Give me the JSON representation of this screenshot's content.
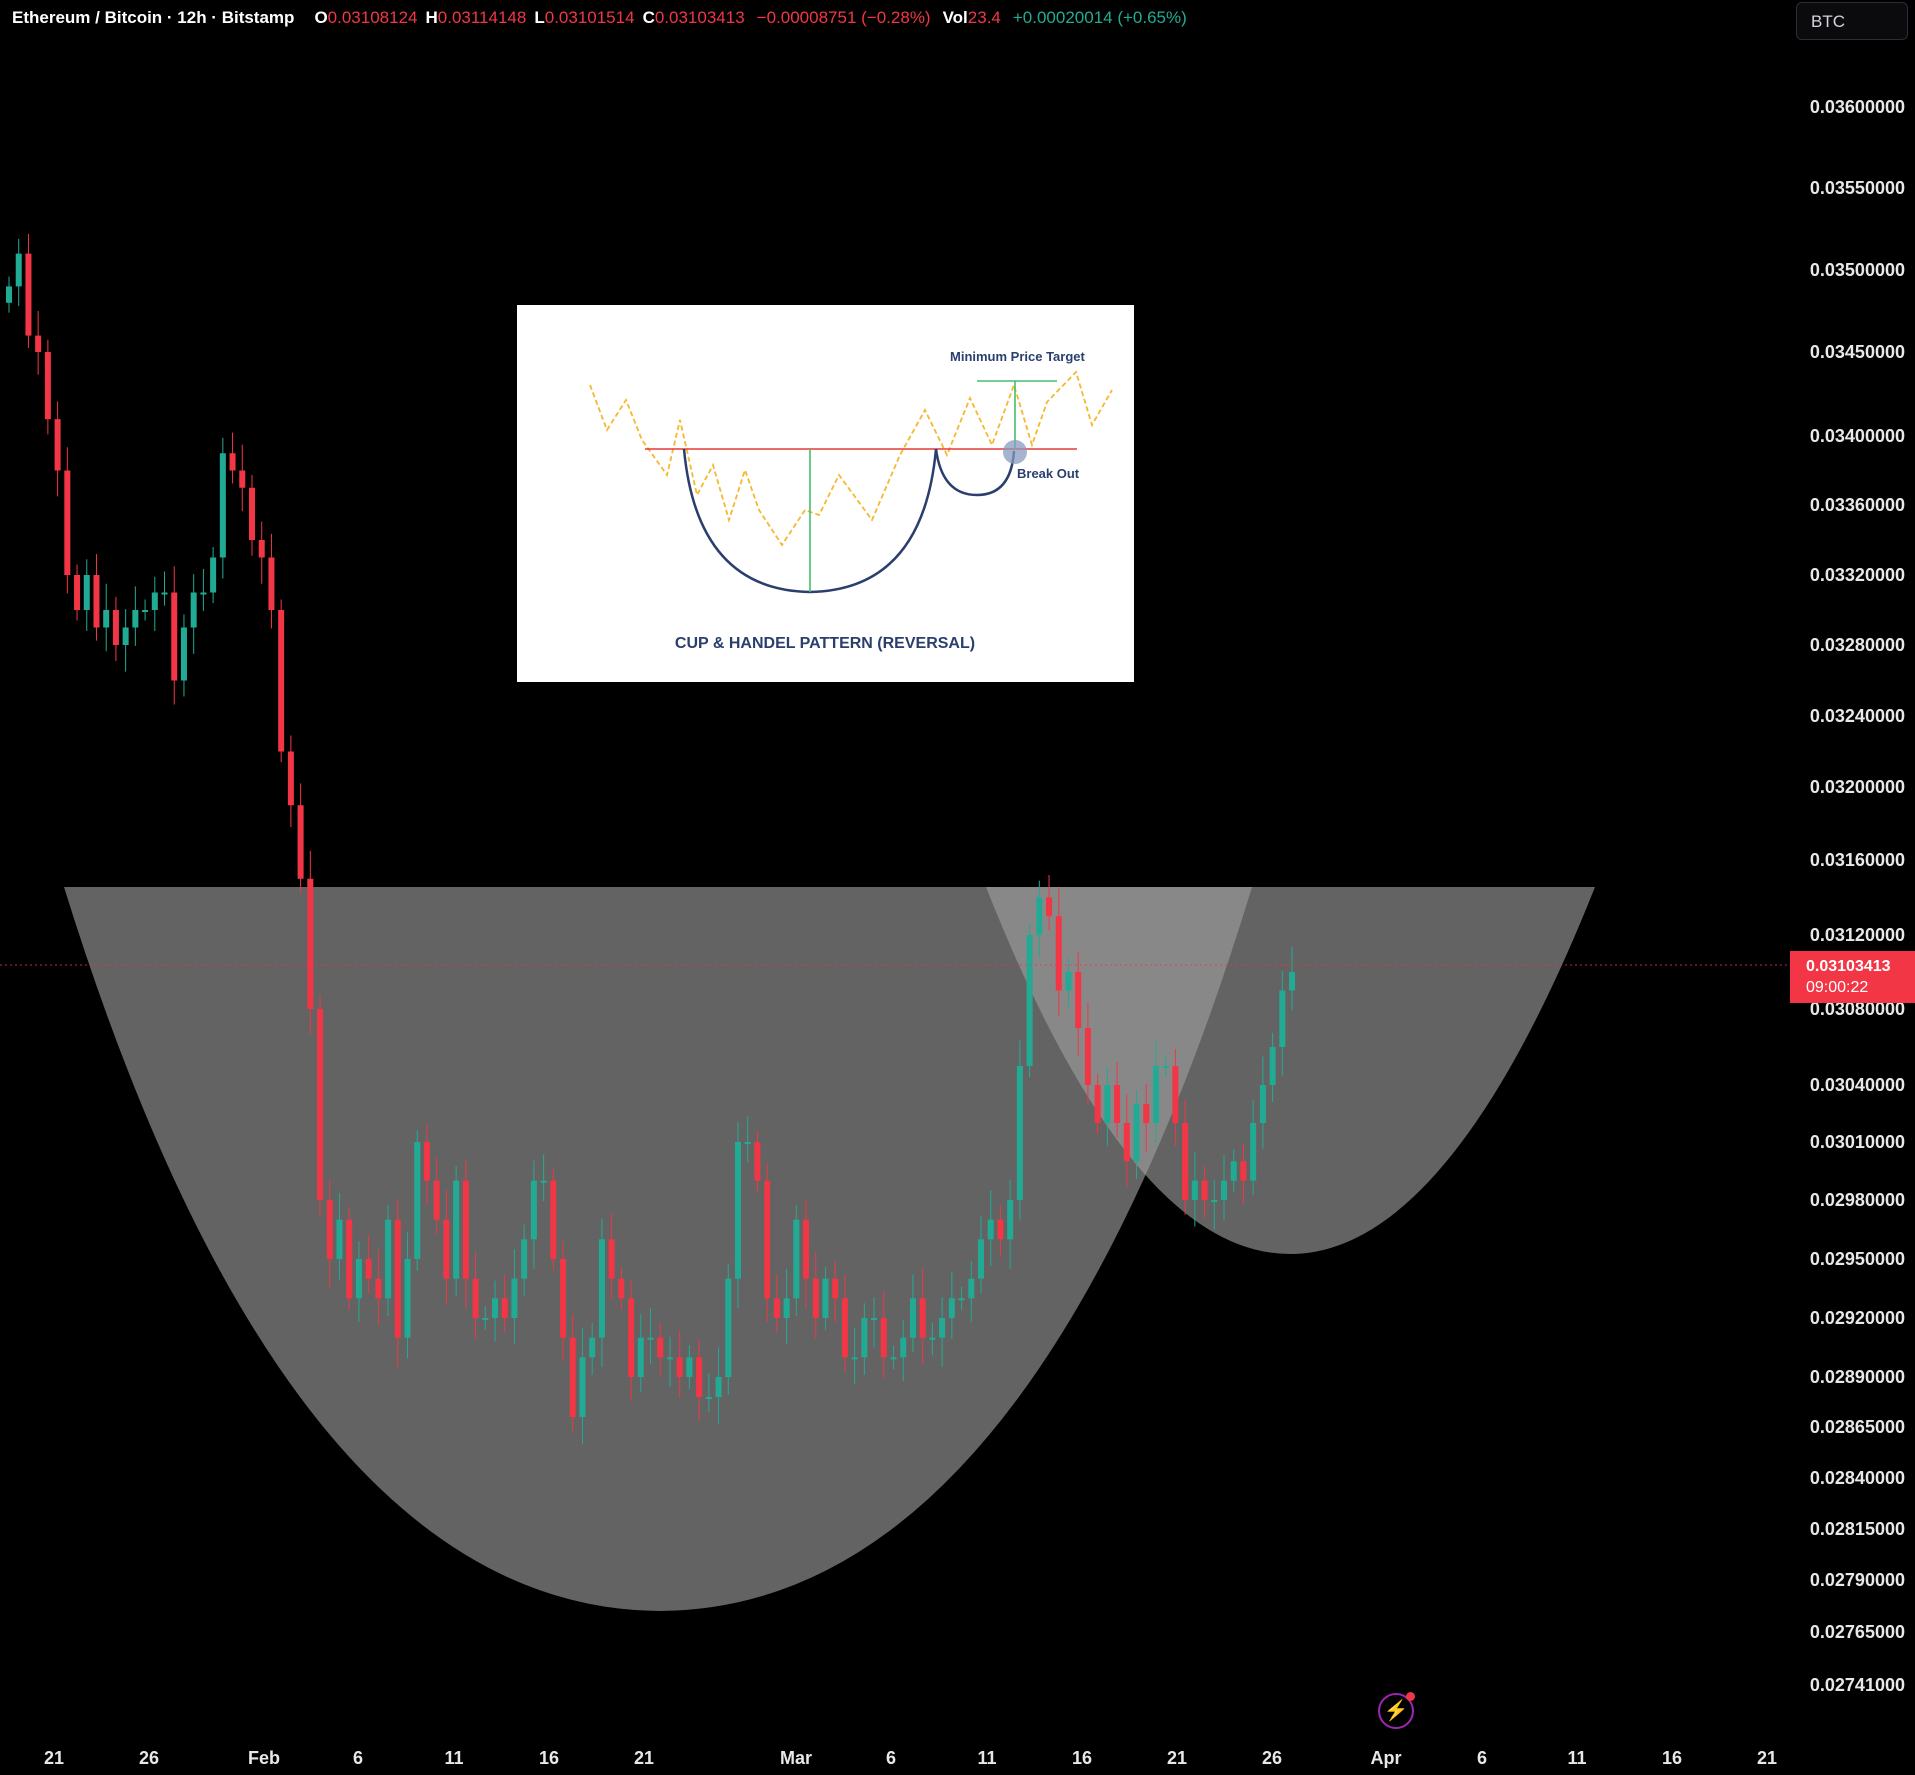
{
  "header": {
    "symbol": "Ethereum / Bitcoin · 12h · Bitstamp",
    "open_label": "O",
    "open": "0.03108124",
    "high_label": "H",
    "high": "0.03114148",
    "low_label": "L",
    "low": "0.03101514",
    "close_label": "C",
    "close": "0.03103413",
    "change": "−0.00008751 (−0.28%)",
    "vol_label": "Vol",
    "vol": "23.4",
    "vol_change": "+0.00020014 (+0.65%)"
  },
  "currency_button": "BTC",
  "last_price": {
    "value": "0.03103413",
    "countdown": "09:00:22"
  },
  "colors": {
    "up": "#22ab94",
    "down": "#f23645",
    "background": "#000000",
    "overlay": "#a0a0a0"
  },
  "inset": {
    "title": "CUP & HANDEL PATTERN (REVERSAL)",
    "target_label": "Minimum Price Target",
    "breakout_label": "Break Out"
  },
  "bottom_icon": "lightning-icon",
  "chart_data": {
    "type": "candlestick",
    "timeframe": "12h",
    "y_axis": {
      "ticks": [
        "0.03600000",
        "0.03550000",
        "0.03500000",
        "0.03450000",
        "0.03400000",
        "0.03360000",
        "0.03320000",
        "0.03280000",
        "0.03240000",
        "0.03200000",
        "0.03160000",
        "0.03120000",
        "0.03080000",
        "0.03040000",
        "0.03010000",
        "0.02980000",
        "0.02950000",
        "0.02920000",
        "0.02890000",
        "0.02865000",
        "0.02840000",
        "0.02815000",
        "0.02790000",
        "0.02765000",
        "0.02741000"
      ]
    },
    "x_axis": {
      "ticks": [
        "21",
        "26",
        "Feb",
        "6",
        "11",
        "16",
        "21",
        "Mar",
        "6",
        "11",
        "16",
        "21",
        "26",
        "Apr",
        "6",
        "11",
        "16",
        "21"
      ]
    },
    "candles_close": [
      0.0349,
      0.0351,
      0.0346,
      0.0345,
      0.0341,
      0.0338,
      0.0332,
      0.033,
      0.0332,
      0.0329,
      0.033,
      0.0328,
      0.0329,
      0.033,
      0.033,
      0.0331,
      0.0331,
      0.0326,
      0.0329,
      0.0331,
      0.0331,
      0.0333,
      0.0339,
      0.0338,
      0.0337,
      0.0334,
      0.0333,
      0.033,
      0.0322,
      0.0319,
      0.0315,
      0.0308,
      0.0298,
      0.0295,
      0.0297,
      0.0293,
      0.0295,
      0.0294,
      0.0293,
      0.0297,
      0.0291,
      0.0295,
      0.0301,
      0.0299,
      0.0297,
      0.0294,
      0.0299,
      0.0294,
      0.0292,
      0.0292,
      0.0293,
      0.0292,
      0.0294,
      0.0296,
      0.0299,
      0.0299,
      0.0295,
      0.0291,
      0.0287,
      0.029,
      0.0291,
      0.0296,
      0.0294,
      0.0293,
      0.0289,
      0.0291,
      0.0291,
      0.029,
      0.029,
      0.0289,
      0.029,
      0.0288,
      0.0288,
      0.0289,
      0.0294,
      0.0301,
      0.0301,
      0.0299,
      0.0293,
      0.0292,
      0.0293,
      0.0297,
      0.0294,
      0.0292,
      0.0294,
      0.0293,
      0.029,
      0.029,
      0.0292,
      0.0292,
      0.029,
      0.029,
      0.0291,
      0.0293,
      0.0291,
      0.0291,
      0.0292,
      0.0293,
      0.0293,
      0.0294,
      0.0296,
      0.0297,
      0.0296,
      0.0298,
      0.0305,
      0.0312,
      0.0314,
      0.0313,
      0.0309,
      0.031,
      0.0307,
      0.0304,
      0.0302,
      0.0304,
      0.0302,
      0.03,
      0.0303,
      0.0302,
      0.0305,
      0.0305,
      0.0302,
      0.0298,
      0.0299,
      0.0298,
      0.0298,
      0.0299,
      0.03,
      0.0299,
      0.0302,
      0.0304,
      0.0306,
      0.0309,
      0.031
    ],
    "annotations": [
      {
        "type": "cup",
        "label": "cup"
      },
      {
        "type": "handle",
        "label": "handle"
      }
    ]
  }
}
